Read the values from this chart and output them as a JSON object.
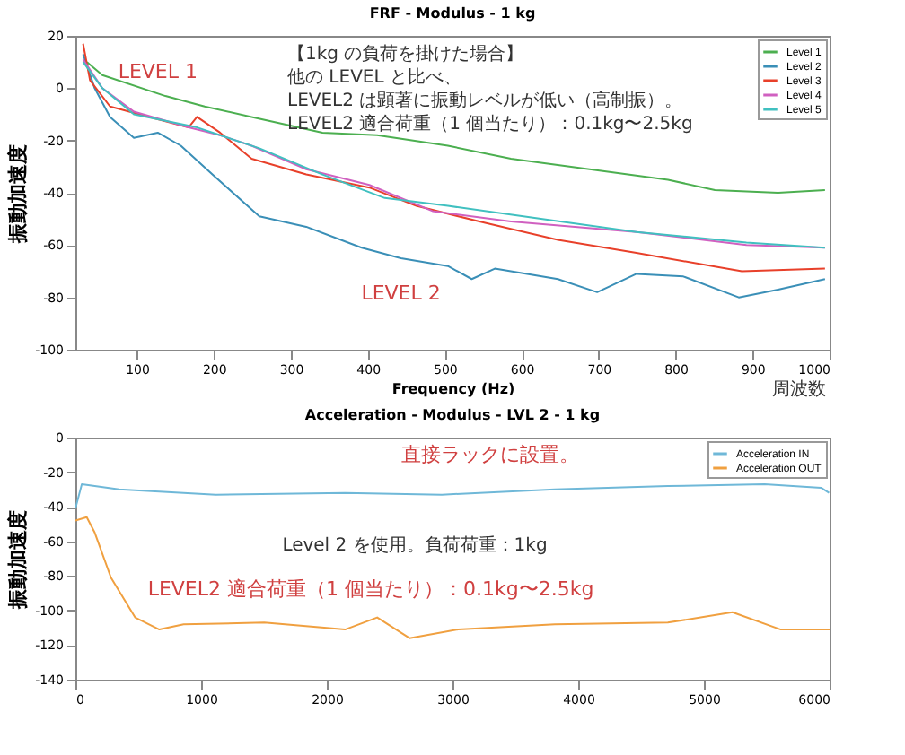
{
  "chart_data": [
    {
      "type": "line",
      "title": "FRF - Modulus - 1 kg",
      "xlabel": "Frequency (Hz)",
      "ylabel": "振動加速度",
      "xlim": [
        20,
        1000
      ],
      "ylim": [
        -100,
        20
      ],
      "xticks": [
        100,
        200,
        300,
        400,
        500,
        600,
        700,
        800,
        900,
        1000
      ],
      "yticks": [
        -100,
        -80,
        -60,
        -40,
        -20,
        0,
        20
      ],
      "grid": false,
      "legend": "top right",
      "marker": "none",
      "line_style": "solid",
      "series": [
        {
          "name": "Level 1",
          "color": "#4caf50",
          "x": [
            35,
            55,
            137,
            188,
            249,
            341,
            412,
            504,
            586,
            688,
            790,
            851,
            933,
            994
          ],
          "values": [
            10,
            5,
            -3,
            -7,
            -11,
            -17,
            -18,
            -22,
            -27,
            -31,
            -35,
            -39,
            -40,
            -39
          ]
        },
        {
          "name": "Level 2",
          "color": "#3a8fb7",
          "x": [
            30,
            45,
            65,
            96,
            127,
            157,
            198,
            259,
            320,
            392,
            443,
            504,
            535,
            565,
            647,
            698,
            749,
            810,
            882,
            933,
            994
          ],
          "values": [
            13,
            0,
            -11,
            -19,
            -17,
            -22,
            -33,
            -49,
            -53,
            -61,
            -65,
            -68,
            -73,
            -69,
            -73,
            -78,
            -71,
            -72,
            -80,
            -77,
            -73
          ]
        },
        {
          "name": "Level 3",
          "color": "#e8402a",
          "x": [
            30,
            39,
            65,
            116,
            167,
            178,
            208,
            249,
            320,
            402,
            463,
            545,
            647,
            749,
            886,
            994
          ],
          "values": [
            17,
            3,
            -7,
            -11,
            -15,
            -11,
            -17,
            -27,
            -33,
            -38,
            -45,
            -51,
            -58,
            -63,
            -70,
            -69
          ]
        },
        {
          "name": "Level 4",
          "color": "#d060c0",
          "x": [
            30,
            55,
            96,
            167,
            208,
            249,
            320,
            402,
            484,
            586,
            749,
            892,
            994
          ],
          "values": [
            11,
            0,
            -9,
            -15,
            -18,
            -22,
            -31,
            -37,
            -47,
            -51,
            -55,
            -60,
            -61
          ]
        },
        {
          "name": "Level 5",
          "color": "#40c0c0",
          "x": [
            30,
            55,
            96,
            178,
            259,
            341,
            422,
            504,
            627,
            749,
            892,
            994
          ],
          "values": [
            10,
            0,
            -10,
            -15,
            -23,
            -33,
            -42,
            -45,
            -50,
            -55,
            -59,
            -61
          ]
        }
      ],
      "annotations": [
        {
          "text": "LEVEL 1",
          "x": 188,
          "y": -7
        },
        {
          "text": "LEVEL 2",
          "x": 443,
          "y": -65
        },
        "【1kg の負荷を掛けた場合】",
        "他の LEVEL と比べ、",
        "LEVEL2 は顕著に振動レベルが低い（高制振）。",
        "LEVEL2 適合荷重（1 個当たり）：0.1kg〜2.5kg",
        "周波数"
      ]
    },
    {
      "type": "line",
      "title": "Acceleration - Modulus - LVL 2 - 1 kg",
      "ylabel": "振動加速度",
      "xlim": [
        0,
        6000
      ],
      "ylim": [
        -140,
        0
      ],
      "xticks": [
        0,
        1000,
        2000,
        3000,
        4000,
        5000,
        6000
      ],
      "yticks": [
        -140,
        -120,
        -100,
        -80,
        -60,
        -40,
        -20,
        0
      ],
      "grid": false,
      "legend": "top right",
      "marker": "none",
      "line_style": "solid",
      "series": [
        {
          "name": "Acceleration IN",
          "color": "#6fb8d8",
          "x": [
            0,
            51,
            347,
            1117,
            2145,
            2915,
            3814,
            4713,
            5483,
            5932,
            5996
          ],
          "values": [
            -41,
            -27,
            -30,
            -33,
            -32,
            -33,
            -30,
            -28,
            -27,
            -29,
            -32
          ]
        },
        {
          "name": "Acceleration OUT",
          "color": "#f0a040",
          "x": [
            0,
            90,
            154,
            283,
            475,
            668,
            861,
            1502,
            2145,
            2401,
            2658,
            3044,
            3814,
            4713,
            5227,
            5612,
            6000
          ],
          "values": [
            -48,
            -46,
            -55,
            -81,
            -104,
            -111,
            -108,
            -107,
            -111,
            -104,
            -116,
            -111,
            -108,
            -107,
            -101,
            -111,
            -111
          ]
        }
      ],
      "annotations": [
        {
          "text": "直接ラックに設置。",
          "x": 3300,
          "y": -30
        },
        {
          "text": "LEVEL2 適合荷重（1 個当たり）：0.1kg〜2.5kg",
          "x": 2350,
          "y": -108
        },
        "Level 2 を使用。負荷荷重：1kg"
      ]
    }
  ]
}
